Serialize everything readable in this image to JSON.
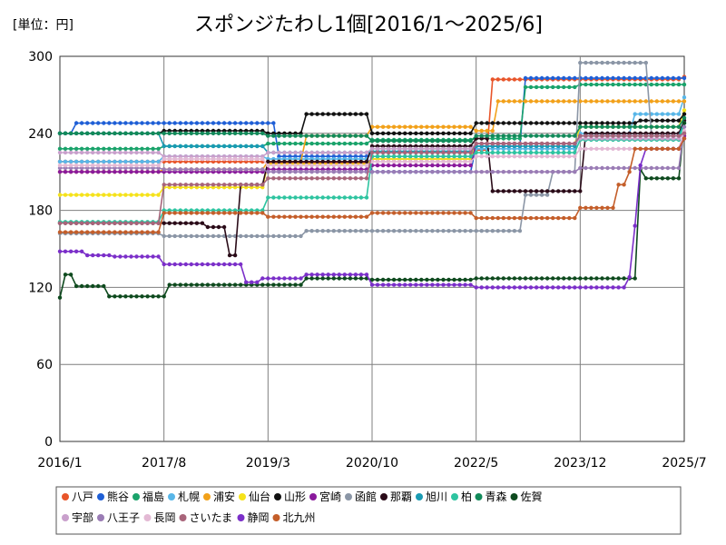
{
  "chart_data": {
    "type": "line",
    "title": "スポンジたわし1個[2016/1～2025/6]",
    "unit_label": "[単位：円]",
    "xlabel": "",
    "ylabel": "",
    "ylim": [
      0,
      300
    ],
    "yticks": [
      0,
      60,
      120,
      180,
      240,
      300
    ],
    "xlim": [
      "2016-01",
      "2025-07"
    ],
    "xticks": [
      "2016/1",
      "2017/8",
      "2019/3",
      "2020/10",
      "2022/5",
      "2023/12",
      "2025/7"
    ],
    "grid": true,
    "legend_position": "bottom",
    "series": [
      {
        "name": "八戸",
        "color": "#e8552a",
        "values": [
          [
            0,
            218
          ],
          [
            19,
            218
          ],
          [
            38,
            217
          ],
          [
            57,
            220
          ],
          [
            76,
            227
          ],
          [
            79,
            282
          ],
          [
            95,
            282
          ],
          [
            114,
            284
          ]
        ]
      },
      {
        "name": "熊谷",
        "color": "#1f5fd6",
        "values": [
          [
            0,
            240
          ],
          [
            3,
            248
          ],
          [
            19,
            248
          ],
          [
            38,
            248
          ],
          [
            40,
            222
          ],
          [
            57,
            210
          ],
          [
            76,
            230
          ],
          [
            85,
            283
          ],
          [
            95,
            283
          ],
          [
            114,
            283
          ]
        ]
      },
      {
        "name": "福島",
        "color": "#1aa36b",
        "values": [
          [
            0,
            228
          ],
          [
            19,
            230
          ],
          [
            38,
            232
          ],
          [
            57,
            235
          ],
          [
            76,
            236
          ],
          [
            85,
            276
          ],
          [
            95,
            278
          ],
          [
            114,
            278
          ]
        ]
      },
      {
        "name": "札幌",
        "color": "#58b6e8",
        "values": [
          [
            0,
            218
          ],
          [
            19,
            222
          ],
          [
            38,
            220
          ],
          [
            57,
            225
          ],
          [
            76,
            228
          ],
          [
            95,
            240
          ],
          [
            105,
            255
          ],
          [
            114,
            268
          ]
        ]
      },
      {
        "name": "浦安",
        "color": "#f2a11a",
        "values": [
          [
            0,
            210
          ],
          [
            19,
            212
          ],
          [
            38,
            218
          ],
          [
            45,
            238
          ],
          [
            57,
            245
          ],
          [
            76,
            242
          ],
          [
            80,
            265
          ],
          [
            95,
            265
          ],
          [
            114,
            265
          ]
        ]
      },
      {
        "name": "仙台",
        "color": "#f5e21a",
        "values": [
          [
            0,
            192
          ],
          [
            19,
            198
          ],
          [
            38,
            216
          ],
          [
            57,
            220
          ],
          [
            76,
            232
          ],
          [
            95,
            245
          ],
          [
            114,
            258
          ]
        ]
      },
      {
        "name": "山形",
        "color": "#111111",
        "values": [
          [
            0,
            240
          ],
          [
            19,
            242
          ],
          [
            38,
            240
          ],
          [
            45,
            255
          ],
          [
            50,
            255
          ],
          [
            57,
            240
          ],
          [
            76,
            248
          ],
          [
            95,
            248
          ],
          [
            106,
            250
          ],
          [
            114,
            255
          ]
        ]
      },
      {
        "name": "宮崎",
        "color": "#8a1a9c",
        "values": [
          [
            0,
            210
          ],
          [
            19,
            210
          ],
          [
            38,
            212
          ],
          [
            57,
            215
          ],
          [
            76,
            232
          ],
          [
            95,
            238
          ],
          [
            114,
            238
          ]
        ]
      },
      {
        "name": "函館",
        "color": "#8b96a6",
        "values": [
          [
            0,
            162
          ],
          [
            19,
            160
          ],
          [
            38,
            160
          ],
          [
            45,
            164
          ],
          [
            57,
            164
          ],
          [
            76,
            164
          ],
          [
            85,
            192
          ],
          [
            90,
            210
          ],
          [
            95,
            295
          ],
          [
            106,
            295
          ],
          [
            108,
            240
          ],
          [
            114,
            240
          ]
        ]
      },
      {
        "name": "那覇",
        "color": "#2a0b18",
        "values": [
          [
            0,
            170
          ],
          [
            19,
            170
          ],
          [
            27,
            167
          ],
          [
            31,
            145
          ],
          [
            33,
            200
          ],
          [
            38,
            218
          ],
          [
            57,
            230
          ],
          [
            76,
            236
          ],
          [
            79,
            195
          ],
          [
            95,
            195
          ],
          [
            96,
            240
          ],
          [
            114,
            250
          ]
        ]
      },
      {
        "name": "旭川",
        "color": "#1a9bb3",
        "values": [
          [
            0,
            240
          ],
          [
            19,
            230
          ],
          [
            38,
            225
          ],
          [
            57,
            226
          ],
          [
            76,
            230
          ],
          [
            95,
            238
          ],
          [
            114,
            248
          ]
        ]
      },
      {
        "name": "柏",
        "color": "#2ec4a0",
        "values": [
          [
            0,
            171
          ],
          [
            19,
            180
          ],
          [
            38,
            190
          ],
          [
            57,
            222
          ],
          [
            76,
            225
          ],
          [
            95,
            235
          ],
          [
            114,
            248
          ]
        ]
      },
      {
        "name": "青森",
        "color": "#128a5a",
        "values": [
          [
            0,
            240
          ],
          [
            19,
            240
          ],
          [
            38,
            238
          ],
          [
            57,
            234
          ],
          [
            76,
            238
          ],
          [
            95,
            245
          ],
          [
            114,
            252
          ]
        ]
      },
      {
        "name": "佐賀",
        "color": "#0e4a1e",
        "values": [
          [
            0,
            112
          ],
          [
            1,
            130
          ],
          [
            3,
            121
          ],
          [
            9,
            113
          ],
          [
            19,
            113
          ],
          [
            20,
            122
          ],
          [
            38,
            122
          ],
          [
            45,
            127
          ],
          [
            57,
            126
          ],
          [
            76,
            127
          ],
          [
            95,
            127
          ],
          [
            105,
            127
          ],
          [
            106,
            212
          ],
          [
            107,
            205
          ],
          [
            111,
            205
          ],
          [
            114,
            248
          ]
        ]
      },
      {
        "name": "宇部",
        "color": "#c9a0cc",
        "values": [
          [
            0,
            225
          ],
          [
            19,
            222
          ],
          [
            38,
            225
          ],
          [
            57,
            228
          ],
          [
            76,
            232
          ],
          [
            95,
            236
          ],
          [
            114,
            240
          ]
        ]
      },
      {
        "name": "八王子",
        "color": "#9a7cb5",
        "values": [
          [
            0,
            213
          ],
          [
            19,
            212
          ],
          [
            38,
            210
          ],
          [
            57,
            210
          ],
          [
            76,
            210
          ],
          [
            95,
            213
          ],
          [
            114,
            245
          ]
        ]
      },
      {
        "name": "長岡",
        "color": "#e3b9d4",
        "values": [
          [
            0,
            215
          ],
          [
            19,
            220
          ],
          [
            38,
            215
          ],
          [
            57,
            218
          ],
          [
            76,
            222
          ],
          [
            95,
            228
          ],
          [
            114,
            242
          ]
        ]
      },
      {
        "name": "さいたま",
        "color": "#a8647a",
        "values": [
          [
            0,
            170
          ],
          [
            19,
            200
          ],
          [
            38,
            205
          ],
          [
            57,
            225
          ],
          [
            76,
            232
          ],
          [
            95,
            238
          ],
          [
            114,
            240
          ]
        ]
      },
      {
        "name": "静岡",
        "color": "#7b2fc9",
        "values": [
          [
            0,
            148
          ],
          [
            5,
            145
          ],
          [
            10,
            144
          ],
          [
            19,
            138
          ],
          [
            33,
            138
          ],
          [
            34,
            124
          ],
          [
            37,
            127
          ],
          [
            45,
            130
          ],
          [
            57,
            122
          ],
          [
            76,
            120
          ],
          [
            95,
            120
          ],
          [
            102,
            120
          ],
          [
            104,
            128
          ],
          [
            105,
            168
          ],
          [
            106,
            215
          ],
          [
            107,
            228
          ],
          [
            114,
            236
          ]
        ]
      },
      {
        "name": "北九州",
        "color": "#c45e2a",
        "values": [
          [
            0,
            163
          ],
          [
            19,
            178
          ],
          [
            38,
            175
          ],
          [
            57,
            178
          ],
          [
            76,
            174
          ],
          [
            95,
            182
          ],
          [
            102,
            200
          ],
          [
            104,
            210
          ],
          [
            105,
            228
          ],
          [
            114,
            236
          ]
        ]
      }
    ]
  }
}
